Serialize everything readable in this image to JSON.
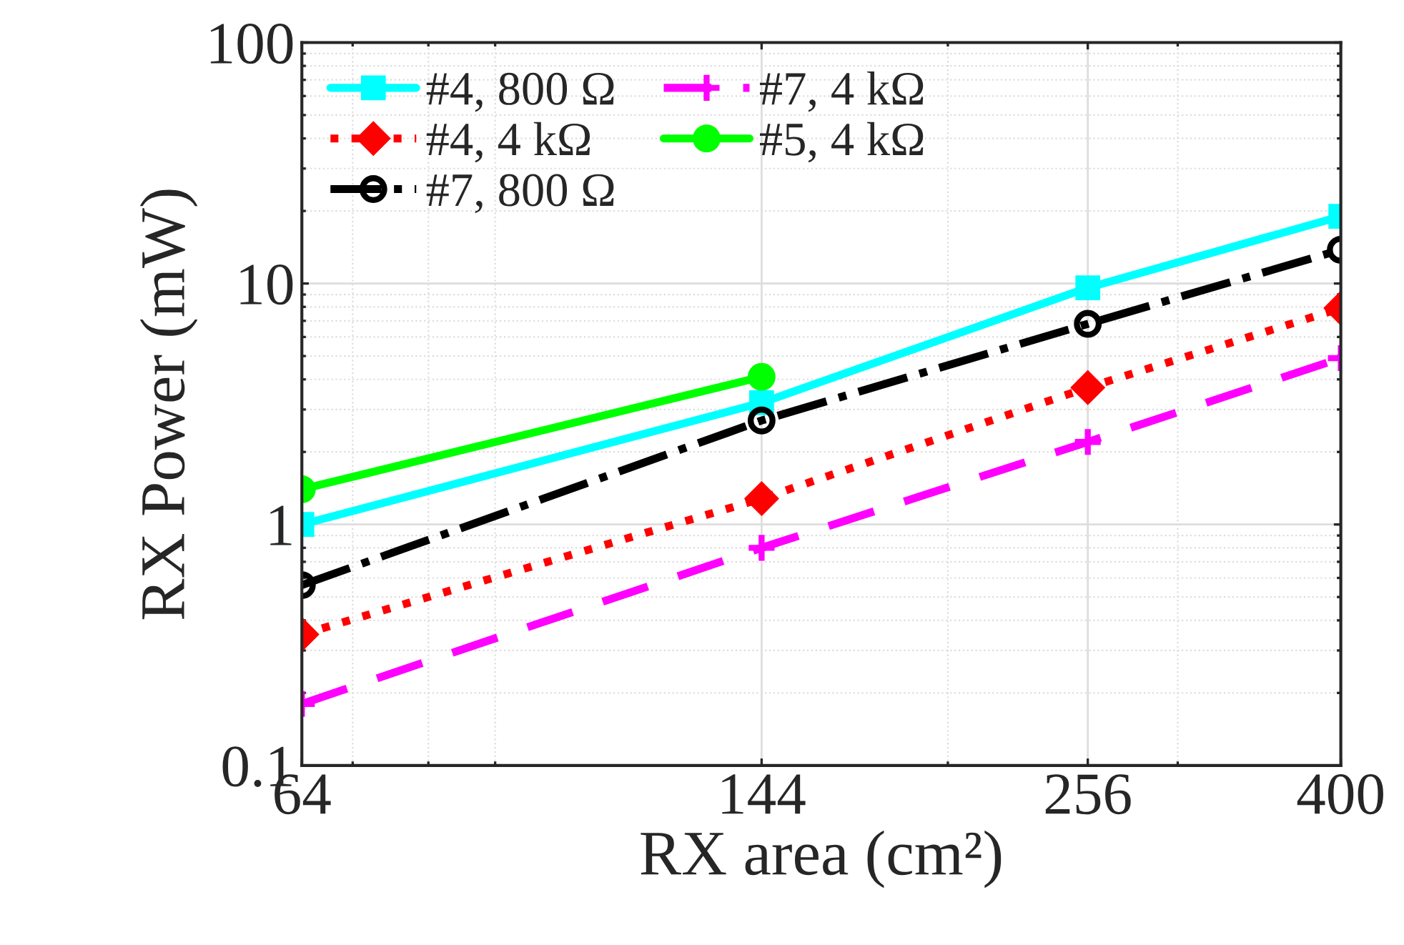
{
  "chart_data": {
    "type": "line",
    "xlabel": "RX area (cm²)",
    "ylabel": "RX Power (mW)",
    "x": [
      64,
      144,
      256,
      400
    ],
    "series": [
      {
        "name": "#4, 800 Ω",
        "color": "#00ffff",
        "marker": "square",
        "line_style": "solid",
        "values": [
          1.0,
          3.2,
          9.6,
          19
        ]
      },
      {
        "name": "#4, 4 kΩ",
        "color": "#ff0000",
        "marker": "diamond",
        "line_style": "dotted",
        "values": [
          0.35,
          1.28,
          3.7,
          7.9
        ]
      },
      {
        "name": "#7, 800 Ω",
        "color": "#000000",
        "marker": "circle",
        "line_style": "dashdot",
        "values": [
          0.56,
          2.7,
          6.8,
          13.8
        ]
      },
      {
        "name": "#7, 4 kΩ",
        "color": "#ff00ff",
        "marker": "cross",
        "line_style": "dashed",
        "values": [
          0.18,
          0.8,
          2.2,
          4.9
        ]
      },
      {
        "name": "#5, 4 kΩ",
        "color": "#00ff00",
        "marker": "circle",
        "line_style": "solid",
        "values": [
          1.4,
          4.1,
          null,
          null
        ]
      }
    ],
    "log": "xy",
    "xlim": [
      64,
      400
    ],
    "ylim": [
      0.1,
      100
    ],
    "xticks": [
      64,
      144,
      256,
      400
    ],
    "yticks": [
      0.1,
      1,
      10,
      100
    ],
    "grid": true,
    "legend": "top left"
  }
}
